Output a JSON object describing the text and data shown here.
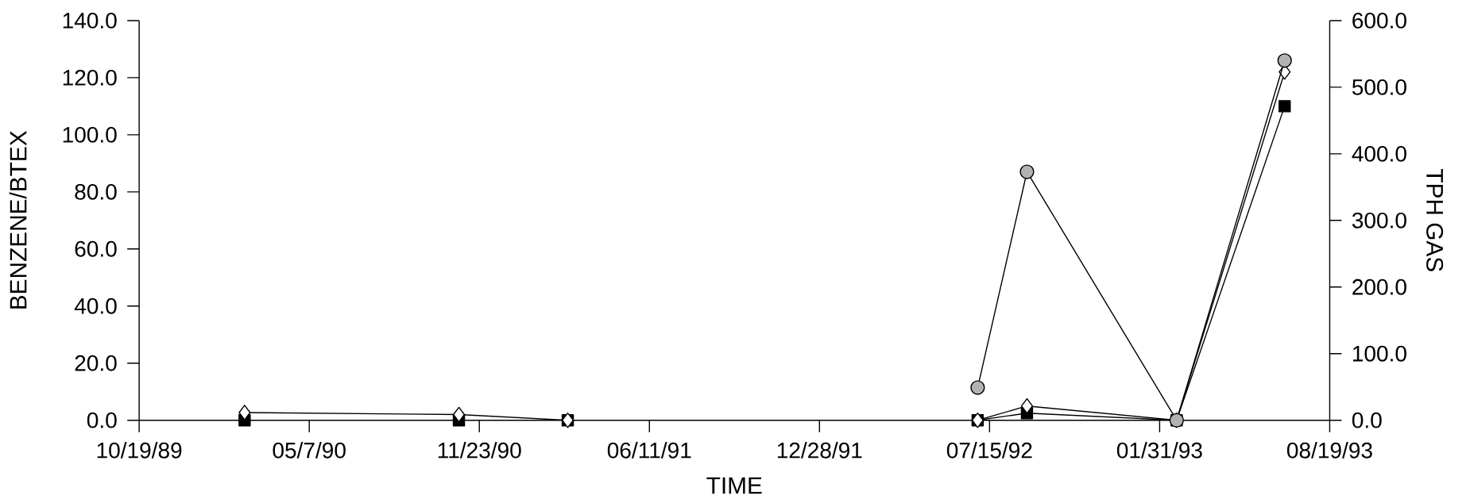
{
  "chart_data": {
    "type": "line",
    "xlabel": "TIME",
    "ylabel": "BENZENE/BTEX",
    "y2label": "TPH GAS",
    "x": [
      "1990-02-20",
      "1990-10-30",
      "1991-03-07",
      "1992-07-01",
      "1992-08-28",
      "1993-02-20",
      "1993-06-27"
    ],
    "series": [
      {
        "color": "#000000",
        "marker": "square",
        "values": [
          0,
          0,
          0,
          0,
          2.5,
          0,
          110
        ]
      },
      {
        "color": "#000000",
        "marker": "diamond",
        "values": [
          2.7,
          2,
          0,
          0,
          5,
          0,
          122
        ]
      },
      {
        "color": "#000000",
        "marker": "circle",
        "axis": "y2",
        "values": [
          null,
          null,
          null,
          49,
          373,
          0,
          540
        ]
      }
    ],
    "xlim": [
      "1989-10-19",
      "1993-08-19"
    ],
    "xticks": [
      {
        "value": "1989-10-19",
        "label": "10/19/89"
      },
      {
        "value": "1990-05-07",
        "label": "05/7/90"
      },
      {
        "value": "1990-11-23",
        "label": "11/23/90"
      },
      {
        "value": "1991-06-11",
        "label": "06/11/91"
      },
      {
        "value": "1991-12-28",
        "label": "12/28/91"
      },
      {
        "value": "1992-07-15",
        "label": "07/15/92"
      },
      {
        "value": "1993-01-31",
        "label": "01/31/93"
      },
      {
        "value": "1993-08-19",
        "label": "08/19/93"
      }
    ],
    "ylim": [
      0,
      140
    ],
    "yticks": [
      {
        "value": 0,
        "label": "0.0"
      },
      {
        "value": 20,
        "label": "20.0"
      },
      {
        "value": 40,
        "label": "40.0"
      },
      {
        "value": 60,
        "label": "60.0"
      },
      {
        "value": 80,
        "label": "80.0"
      },
      {
        "value": 100,
        "label": "100.0"
      },
      {
        "value": 120,
        "label": "120.0"
      },
      {
        "value": 140,
        "label": "140.0"
      }
    ],
    "y2lim": [
      0,
      600
    ],
    "y2ticks": [
      {
        "value": 0,
        "label": "0.0"
      },
      {
        "value": 100,
        "label": "100.0"
      },
      {
        "value": 200,
        "label": "200.0"
      },
      {
        "value": 300,
        "label": "300.0"
      },
      {
        "value": 400,
        "label": "400.0"
      },
      {
        "value": 500,
        "label": "500.0"
      },
      {
        "value": 600,
        "label": "600.0"
      }
    ],
    "grid": false,
    "line_style": "solid"
  }
}
